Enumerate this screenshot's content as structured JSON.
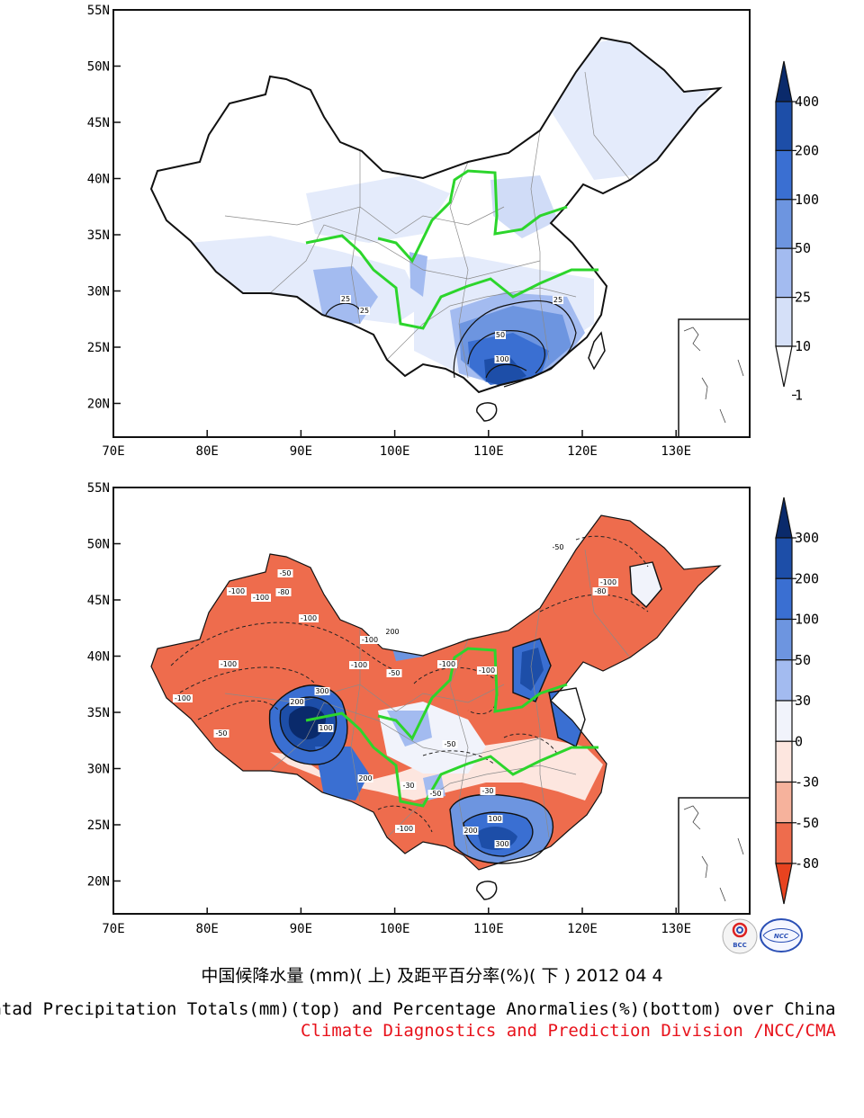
{
  "top_map": {
    "lat_ticks": [
      "55N",
      "50N",
      "45N",
      "40N",
      "35N",
      "30N",
      "25N",
      "20N"
    ],
    "lon_ticks": [
      "70E",
      "80E",
      "90E",
      "100E",
      "110E",
      "120E",
      "130E"
    ],
    "colorbar_labels": [
      "400",
      "200",
      "100",
      "50",
      "25",
      "10",
      "1"
    ],
    "colorbar_colors": [
      "#0a2a6b",
      "#1d4ea8",
      "#3a6fd2",
      "#6d95e0",
      "#a3bbf0",
      "#d5e0f8",
      "#ffffff"
    ],
    "contour_labels": [
      "25",
      "25",
      "25",
      "50",
      "100"
    ]
  },
  "bottom_map": {
    "lat_ticks": [
      "55N",
      "50N",
      "45N",
      "40N",
      "35N",
      "30N",
      "25N",
      "20N"
    ],
    "lon_ticks": [
      "70E",
      "80E",
      "90E",
      "100E",
      "110E",
      "120E",
      "130E"
    ],
    "colorbar_labels": [
      "300",
      "200",
      "100",
      "50",
      "30",
      "0",
      "-30",
      "-50",
      "-80"
    ],
    "colorbar_colors": [
      "#0a2a6b",
      "#1d4ea8",
      "#3a6fd2",
      "#6d95e0",
      "#a3bbf0",
      "#f1f3fb",
      "#fde6df",
      "#f6b29c",
      "#ee6c4d",
      "#e8431f"
    ],
    "contour_labels": [
      "-100",
      "-100",
      "-50",
      "-80",
      "-100",
      "-100",
      "-100",
      "-100",
      "-100",
      "-50",
      "200",
      "-100",
      "-100",
      "300",
      "200",
      "100",
      "200",
      "-50",
      "-30",
      "-100",
      "-50",
      "100",
      "300",
      "200",
      "-80",
      "-50",
      "-100",
      "-50",
      "-30"
    ]
  },
  "logos": {
    "left": "BCC",
    "right": "NCC"
  },
  "title_cn": "中国候降水量 (mm)( 上) 及距平百分率(%)( 下 ) 2012 04 4",
  "title_en": "Pentad Precipitation Totals(mm)(top) and Percentage Anormalies(%)(bottom) over China",
  "credit": "Climate Diagnostics and Prediction Division /NCC/CMA"
}
